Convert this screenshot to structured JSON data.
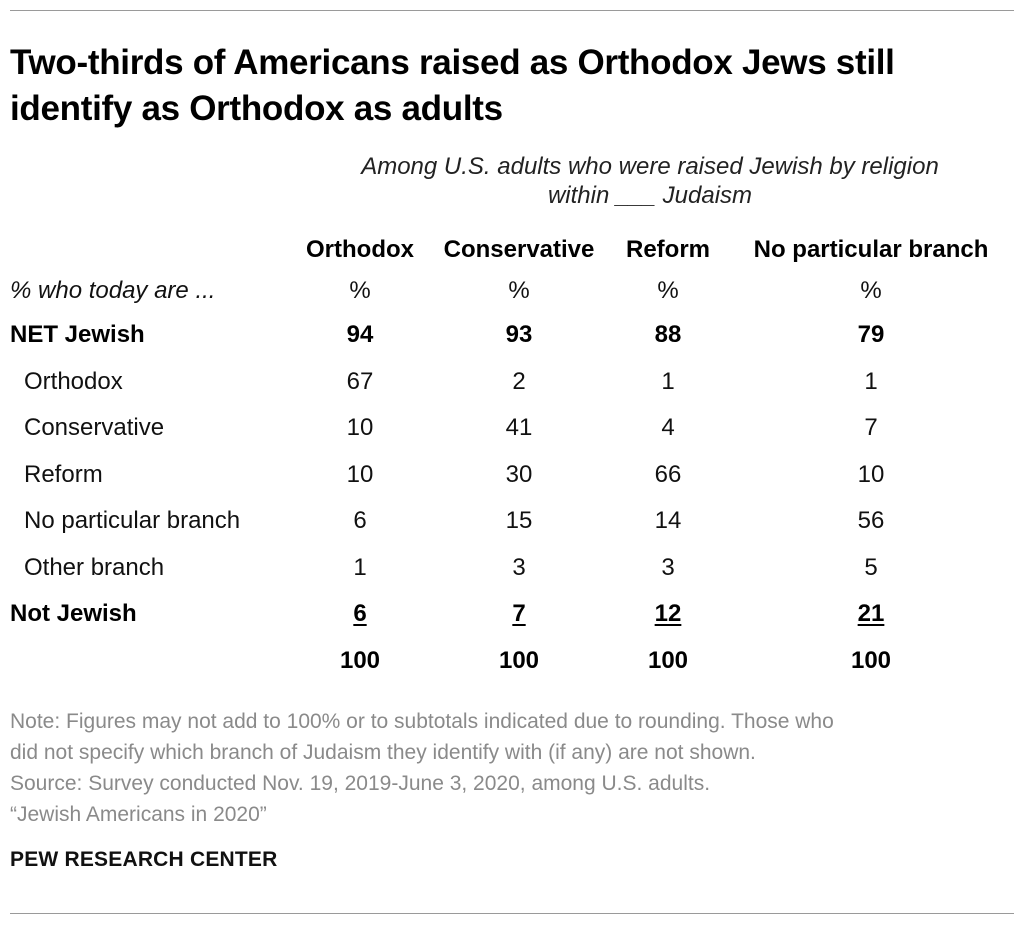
{
  "title": "Two-thirds of Americans raised as Orthodox Jews still identify as Orthodox as adults",
  "subtitle": "Among U.S. adults who were raised Jewish by religion within ___ Judaism",
  "chart_data": {
    "type": "table",
    "columns": [
      "Orthodox",
      "Conservative",
      "Reform",
      "No particular branch"
    ],
    "unit_row": {
      "label": "% who today are ...",
      "values": [
        "%",
        "%",
        "%",
        "%"
      ]
    },
    "rows": [
      {
        "label": "NET Jewish",
        "values": [
          "94",
          "93",
          "88",
          "79"
        ],
        "bold": true
      },
      {
        "label": "Orthodox",
        "values": [
          "67",
          "2",
          "1",
          "1"
        ]
      },
      {
        "label": "Conservative",
        "values": [
          "10",
          "41",
          "4",
          "7"
        ]
      },
      {
        "label": "Reform",
        "values": [
          "10",
          "30",
          "66",
          "10"
        ]
      },
      {
        "label": "No particular branch",
        "values": [
          "6",
          "15",
          "14",
          "56"
        ]
      },
      {
        "label": "Other branch",
        "values": [
          "1",
          "3",
          "3",
          "5"
        ]
      },
      {
        "label": "Not Jewish",
        "values": [
          "6",
          "7",
          "12",
          "21"
        ],
        "bold": true,
        "underline": true
      }
    ],
    "totals": [
      "100",
      "100",
      "100",
      "100"
    ]
  },
  "notes": [
    "Note: Figures may not add to 100% or to subtotals indicated due to rounding. Those who",
    "did not specify which branch of Judaism they identify with (if any) are not shown.",
    "Source: Survey conducted Nov. 19, 2019-June 3, 2020, among U.S. adults.",
    "“Jewish Americans in 2020”"
  ],
  "brand": "PEW RESEARCH CENTER"
}
